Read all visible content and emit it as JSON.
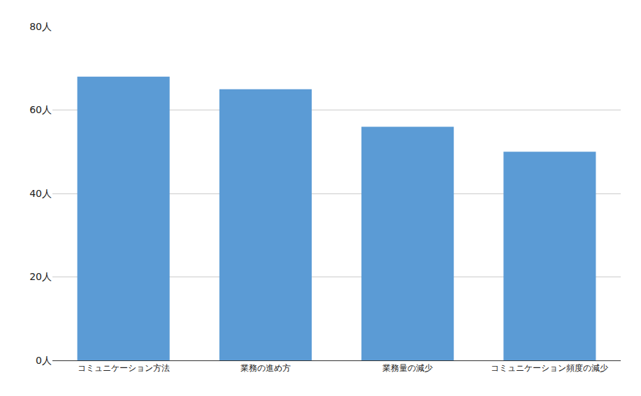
{
  "chart_data": {
    "type": "bar",
    "categories": [
      "コミュニケーション方法",
      "業務の進め方",
      "業務量の減少",
      "コミュニケーション頻度の減少"
    ],
    "values": [
      68,
      65,
      56,
      50
    ],
    "color": "#5b9bd5",
    "ylim": [
      0,
      80
    ],
    "yticks": [
      {
        "value": 0,
        "label": "0人"
      },
      {
        "value": 20,
        "label": "20人"
      },
      {
        "value": 40,
        "label": "40人"
      },
      {
        "value": 60,
        "label": "60人"
      },
      {
        "value": 80,
        "label": "80人"
      }
    ],
    "grid": true
  }
}
